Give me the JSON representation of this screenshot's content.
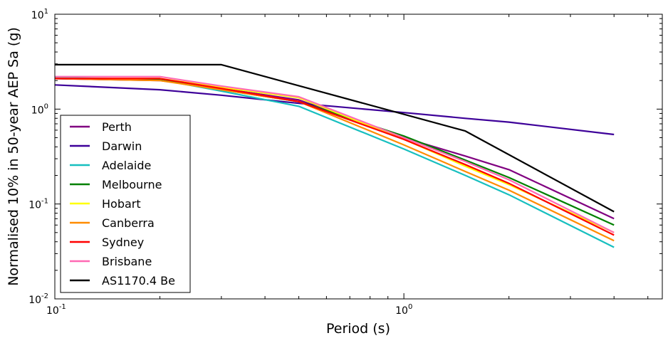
{
  "chart_data": {
    "type": "line",
    "title": "",
    "xlabel": "Period (s)",
    "ylabel": "Normalised 10% in 50-year AEP Sa (g)",
    "xscale": "log",
    "yscale": "log",
    "xlim": [
      0.1,
      5.5
    ],
    "ylim": [
      0.01,
      10
    ],
    "grid": false,
    "legend_position": "lower-left",
    "x_ticks": [
      {
        "value": 0.1,
        "base": "10",
        "exp": "-1"
      },
      {
        "value": 1,
        "base": "10",
        "exp": "0"
      }
    ],
    "y_ticks": [
      {
        "value": 0.01,
        "base": "10",
        "exp": "-2"
      },
      {
        "value": 0.1,
        "base": "10",
        "exp": "-1"
      },
      {
        "value": 1,
        "base": "10",
        "exp": "0"
      },
      {
        "value": 10,
        "base": "10",
        "exp": "1"
      }
    ],
    "series": [
      {
        "name": "Perth",
        "color": "#800080",
        "x": [
          0.1,
          0.2,
          0.3,
          0.5,
          1.0,
          1.5,
          2.0,
          4.0
        ],
        "y": [
          2.1,
          2.0,
          1.65,
          1.25,
          0.5,
          0.32,
          0.23,
          0.07
        ]
      },
      {
        "name": "Darwin",
        "color": "#3d0099",
        "x": [
          0.1,
          0.2,
          0.3,
          0.5,
          1.0,
          1.5,
          2.0,
          4.0
        ],
        "y": [
          1.8,
          1.6,
          1.4,
          1.15,
          0.92,
          0.8,
          0.73,
          0.54
        ]
      },
      {
        "name": "Adelaide",
        "color": "#17bfbf",
        "x": [
          0.1,
          0.2,
          0.3,
          0.5,
          1.0,
          1.5,
          2.0,
          4.0
        ],
        "y": [
          2.15,
          2.05,
          1.55,
          1.07,
          0.38,
          0.2,
          0.125,
          0.035
        ]
      },
      {
        "name": "Melbourne",
        "color": "#008000",
        "x": [
          0.1,
          0.2,
          0.3,
          0.5,
          1.0,
          1.5,
          2.0,
          4.0
        ],
        "y": [
          2.1,
          2.05,
          1.6,
          1.2,
          0.52,
          0.29,
          0.19,
          0.06
        ]
      },
      {
        "name": "Hobart",
        "color": "#ffff00",
        "x": [
          0.1,
          0.2,
          0.3,
          0.5,
          1.0,
          1.5,
          2.0,
          4.0
        ],
        "y": [
          2.1,
          2.1,
          1.7,
          1.32,
          0.48,
          0.25,
          0.16,
          0.05
        ]
      },
      {
        "name": "Canberra",
        "color": "#ff8c00",
        "x": [
          0.1,
          0.2,
          0.3,
          0.5,
          1.0,
          1.5,
          2.0,
          4.0
        ],
        "y": [
          2.1,
          2.0,
          1.6,
          1.2,
          0.42,
          0.22,
          0.14,
          0.041
        ]
      },
      {
        "name": "Sydney",
        "color": "#ff0000",
        "x": [
          0.1,
          0.2,
          0.3,
          0.5,
          1.0,
          1.5,
          2.0,
          4.0
        ],
        "y": [
          2.1,
          2.1,
          1.65,
          1.2,
          0.48,
          0.26,
          0.165,
          0.047
        ]
      },
      {
        "name": "Brisbane",
        "color": "#ff69b4",
        "x": [
          0.1,
          0.2,
          0.3,
          0.5,
          1.0,
          1.5,
          2.0,
          4.0
        ],
        "y": [
          2.2,
          2.2,
          1.75,
          1.35,
          0.5,
          0.28,
          0.18,
          0.05
        ]
      },
      {
        "name": "AS1170.4 Be",
        "color": "#000000",
        "x": [
          0.1,
          0.3,
          1.5,
          4.0
        ],
        "y": [
          2.94,
          2.94,
          0.588,
          0.083
        ]
      }
    ]
  }
}
